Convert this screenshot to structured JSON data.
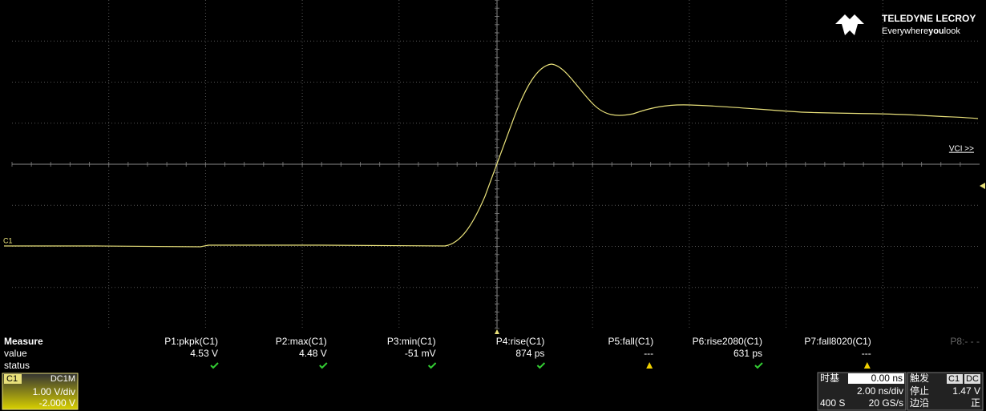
{
  "logo": {
    "brand": "TELEDYNE LECROY",
    "tagline_start": "Everywhere",
    "tagline_bold": "you",
    "tagline_end": "look"
  },
  "markers": {
    "channel": "C1",
    "vci": "VCI >>"
  },
  "measure": {
    "heading": "Measure",
    "row_value": "value",
    "row_status": "status",
    "columns": [
      {
        "name": "P1:pkpk(C1)",
        "value": "4.53 V"
      },
      {
        "name": "P2:max(C1)",
        "value": "4.48 V"
      },
      {
        "name": "P3:min(C1)",
        "value": "-51 mV"
      },
      {
        "name": "P4:rise(C1)",
        "value": "874 ps"
      },
      {
        "name": "P5:fall(C1)",
        "value": "---"
      },
      {
        "name": "P6:rise2080(C1)",
        "value": "631 ps"
      },
      {
        "name": "P7:fall8020(C1)",
        "value": "---"
      }
    ],
    "extra": "P8:- - -"
  },
  "channel_box": {
    "name": "C1",
    "coupling": "DC1M",
    "scale": "1.00 V/div",
    "offset": "-2.000 V"
  },
  "timebase": {
    "label": "时基",
    "delay": "0.00 ns",
    "scale": "2.00 ns/div",
    "points": "400 S",
    "rate": "20 GS/s"
  },
  "trigger": {
    "label": "触发",
    "source": "C1",
    "coupling": "DC",
    "mode": "停止",
    "level": "1.47 V",
    "type": "边沿",
    "slope": "正"
  }
}
